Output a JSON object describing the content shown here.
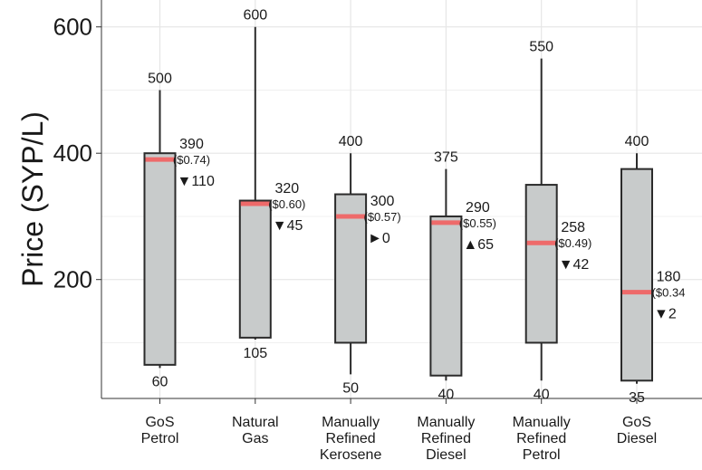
{
  "chart_data": {
    "type": "boxplot",
    "title": "",
    "xlabel": "",
    "ylabel": "Price (SYP/L)",
    "ylim": [
      0,
      620
    ],
    "yticks": [
      200,
      400,
      600
    ],
    "grid": true,
    "categories": [
      [
        "GoS",
        "Petrol"
      ],
      [
        "Natural",
        "Gas"
      ],
      [
        "Manually",
        "Refined",
        "Kerosene"
      ],
      [
        "Manually",
        "Refined",
        "Diesel"
      ],
      [
        "Manually",
        "Refined",
        "Petrol"
      ],
      [
        "GoS",
        "Diesel"
      ]
    ],
    "boxes": [
      {
        "min": 60,
        "q1": 65,
        "median": 390,
        "q3": 400,
        "max": 500,
        "min_label": "60",
        "max_label": "500",
        "median_label": "390",
        "usd_label": "($0.74)",
        "change_dir": "down",
        "change": "110"
      },
      {
        "min": 105,
        "q1": 108,
        "median": 320,
        "q3": 325,
        "max": 600,
        "min_label": "105",
        "max_label": "600",
        "median_label": "320",
        "usd_label": "($0.60)",
        "change_dir": "down",
        "change": "45"
      },
      {
        "min": 50,
        "q1": 100,
        "median": 300,
        "q3": 335,
        "max": 400,
        "min_label": "50",
        "max_label": "400",
        "median_label": "300",
        "usd_label": "($0.57)",
        "change_dir": "flat",
        "change": "0"
      },
      {
        "min": 40,
        "q1": 48,
        "median": 290,
        "q3": 300,
        "max": 375,
        "min_label": "40",
        "max_label": "375",
        "median_label": "290",
        "usd_label": "($0.55)",
        "change_dir": "up",
        "change": "65"
      },
      {
        "min": 40,
        "q1": 100,
        "median": 258,
        "q3": 350,
        "max": 550,
        "min_label": "40",
        "max_label": "550",
        "median_label": "258",
        "usd_label": "($0.49)",
        "change_dir": "down",
        "change": "42"
      },
      {
        "min": 35,
        "q1": 40,
        "median": 180,
        "q3": 375,
        "max": 400,
        "min_label": "35",
        "max_label": "400",
        "median_label": "180",
        "usd_label": "($0.34",
        "change_dir": "down",
        "change": "2"
      }
    ]
  },
  "colors": {
    "box_fill": "#c8cbcb",
    "box_stroke": "#2b2b2b",
    "median": "#ee6a6a",
    "down": "#8fcb9b",
    "up": "#ee6a6a",
    "flat": "#111111",
    "grid": "#e6e6e6",
    "axis": "#333333"
  },
  "glyphs": {
    "down": "▼",
    "up": "▲",
    "flat": "►"
  }
}
